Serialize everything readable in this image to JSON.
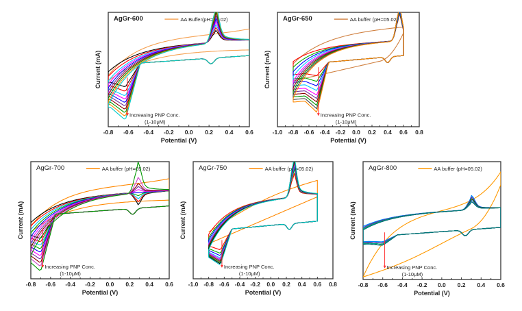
{
  "figure": {
    "description": "Cyclic voltammograms of AgGr electrodes with increasing PNP concentration"
  },
  "chart_data": [
    {
      "type": "line",
      "title": "AgGr-600",
      "legend": [
        "AA Buffer(pH=05.02)"
      ],
      "legend_placement": "top-right",
      "xlabel": "Potential (V)",
      "ylabel": "Current (mA)",
      "xlim": [
        -0.8,
        0.6
      ],
      "xticks": [
        "-0.8",
        "-0.6",
        "-0.4",
        "-0.2",
        "0.0",
        "0.2",
        "0.4",
        "0.6"
      ],
      "ylim": [
        0,
        1
      ],
      "annotation": [
        "Increasing PNP Conc.",
        "(1-10μM)"
      ],
      "concentration_uM": [
        1,
        10
      ],
      "oxidation_peak_V": 0.26,
      "reduction_peak_V": -0.63,
      "reverse_peak_V": 0.22,
      "buffer_has_peak": false,
      "series_count": 10,
      "series_colors": [
        "#000000",
        "#ff0000",
        "#00c8ff",
        "#ff00ff",
        "#0000ff",
        "#7030a0",
        "#8b0000",
        "#009900",
        "#ff8800",
        "#00cccc"
      ],
      "buffer_color": "#f5a050",
      "series": [
        {
          "name": "AA Buffer",
          "color": "#f5a050",
          "anodic": [
            [
              -0.8,
              0.4
            ],
            [
              -0.6,
              0.56
            ],
            [
              -0.4,
              0.7
            ],
            [
              -0.2,
              0.76
            ],
            [
              0.0,
              0.8
            ],
            [
              0.2,
              0.82
            ],
            [
              0.4,
              0.83
            ],
            [
              0.6,
              0.88
            ]
          ],
          "cathodic": [
            [
              0.6,
              0.88
            ],
            [
              0.4,
              0.78
            ],
            [
              0.2,
              0.7
            ],
            [
              0.0,
              0.66
            ],
            [
              -0.2,
              0.62
            ],
            [
              -0.4,
              0.58
            ],
            [
              -0.6,
              0.44
            ],
            [
              -0.8,
              0.4
            ]
          ]
        }
      ],
      "peak_heights_relative": [
        0.78,
        0.8,
        0.82,
        0.84,
        0.86,
        0.88,
        0.9,
        0.92,
        0.94,
        0.96
      ],
      "cathodic_min_relative": [
        0.38,
        0.34,
        0.3,
        0.27,
        0.24,
        0.21,
        0.18,
        0.15,
        0.12,
        0.09
      ]
    },
    {
      "type": "line",
      "title": "AgGr-650",
      "legend": [
        "AA buffer (pH=05.02)"
      ],
      "legend_placement": "top-right",
      "xlabel": "Potential (V)",
      "ylabel": "Current (mA)",
      "xlim": [
        -1.0,
        0.8
      ],
      "xticks": [
        "-1.0",
        "-0.8",
        "-0.6",
        "-0.4",
        "-0.2",
        "0.0",
        "0.2",
        "0.4",
        "0.6",
        "0.8"
      ],
      "ylim": [
        0,
        1
      ],
      "annotation": [
        "Increasing PNP Conc.",
        "(1-10μM)"
      ],
      "concentration_uM": [
        1,
        10
      ],
      "oxidation_peak_V": 0.54,
      "reduction_peak_V": -0.5,
      "reverse_peak_V": 0.4,
      "series_count": 10,
      "series_colors": [
        "#ff0000",
        "#00aa00",
        "#0000ff",
        "#00c8ff",
        "#ff00ff",
        "#7030a0",
        "#8b0000",
        "#009900",
        "#444444",
        "#ff8800"
      ],
      "buffer_color": "#d08040",
      "peak_heights_relative": [
        0.88,
        0.89,
        0.9,
        0.91,
        0.92,
        0.92,
        0.93,
        0.93,
        0.94,
        0.94
      ],
      "cathodic_min_relative": [
        0.47,
        0.42,
        0.38,
        0.34,
        0.3,
        0.27,
        0.24,
        0.21,
        0.18,
        0.15
      ]
    },
    {
      "type": "line",
      "title": "AgGr-700",
      "legend": [
        "AA buffer (pH=05.02)"
      ],
      "legend_placement": "top-right",
      "xlabel": "Potential (V)",
      "ylabel": "Current (mA)",
      "xlim": [
        -0.8,
        0.6
      ],
      "xticks": [
        "-0.8",
        "-0.6",
        "-0.4",
        "-0.2",
        "0.0",
        "0.2",
        "0.4",
        "0.6"
      ],
      "ylim": [
        0,
        1
      ],
      "annotation": [
        "Increasing PNP Conc.",
        "(1-10μM)"
      ],
      "concentration_uM": [
        1,
        10
      ],
      "oxidation_peak_V": 0.28,
      "reduction_peak_V": -0.7,
      "reverse_peak_V": 0.23,
      "series_count": 10,
      "series_colors": [
        "#000000",
        "#ff0000",
        "#00c8ff",
        "#00aa00",
        "#0000ff",
        "#ff00ff",
        "#7030a0",
        "#8b0000",
        "#cc44cc",
        "#009900"
      ],
      "buffer_color": "#ff8800",
      "peak_heights_relative": [
        0.62,
        0.64,
        0.66,
        0.68,
        0.7,
        0.72,
        0.74,
        0.76,
        0.8,
        0.9
      ],
      "cathodic_min_relative": [
        0.38,
        0.35,
        0.32,
        0.29,
        0.26,
        0.23,
        0.2,
        0.17,
        0.14,
        0.1
      ]
    },
    {
      "type": "line",
      "title": "AgGr-750",
      "legend": [
        "AA buffer (pH=05.02)"
      ],
      "legend_placement": "top-right",
      "xlabel": "Potential (V)",
      "ylabel": "Current (mA)",
      "xlim": [
        -1.0,
        0.8
      ],
      "xticks": [
        "-1.0",
        "-0.8",
        "-0.6",
        "-0.4",
        "-0.2",
        "0.0",
        "0.2",
        "0.4",
        "0.6",
        "0.8"
      ],
      "ylim": [
        0,
        1
      ],
      "annotation": [
        "Increasing PNP Conc.",
        "(1-10μM)"
      ],
      "concentration_uM": [
        1,
        10
      ],
      "oxidation_peak_V": 0.29,
      "reduction_peak_V": -0.65,
      "reverse_peak_V": 0.24,
      "series_count": 10,
      "series_colors": [
        "#ff0000",
        "#00aa00",
        "#0000ff",
        "#00c8ff",
        "#ff00ff",
        "#7030a0",
        "#8b0000",
        "#009900",
        "#000000",
        "#00cccc"
      ],
      "buffer_color": "#ff8800",
      "peak_heights_relative": [
        0.82,
        0.85,
        0.87,
        0.88,
        0.89,
        0.9,
        0.91,
        0.92,
        0.93,
        0.94
      ],
      "cathodic_min_relative": [
        0.28,
        0.25,
        0.23,
        0.21,
        0.2,
        0.19,
        0.18,
        0.17,
        0.16,
        0.15
      ]
    },
    {
      "type": "line",
      "title": "AgGr-800",
      "legend": [
        "AA buffer (pH=05.02)"
      ],
      "legend_placement": "top-right",
      "xlabel": "Potential (V)",
      "ylabel": "Current (mA)",
      "xlim": [
        -0.8,
        0.6
      ],
      "xticks": [
        "-0.8",
        "-0.6",
        "-0.4",
        "-0.2",
        "0.0",
        "0.2",
        "0.4",
        "0.6"
      ],
      "ylim": [
        0,
        1
      ],
      "annotation": [
        "Increasing PNP Conc.",
        "(1-10μM)"
      ],
      "concentration_uM": [
        1,
        10
      ],
      "oxidation_peak_V": 0.3,
      "reduction_peak_V": -0.6,
      "reverse_peak_V": 0.24,
      "series_count": 10,
      "series_colors": [
        "#00c8ff",
        "#0088ff",
        "#0000ff",
        "#7030a0",
        "#009900",
        "#006600",
        "#00aa88",
        "#3366cc",
        "#000000",
        "#008080"
      ],
      "buffer_color": "#ff9900",
      "peak_heights_relative": [
        0.64,
        0.64,
        0.63,
        0.63,
        0.62,
        0.62,
        0.61,
        0.61,
        0.6,
        0.6
      ],
      "cathodic_min_relative": [
        0.35,
        0.35,
        0.34,
        0.34,
        0.33,
        0.33,
        0.33,
        0.32,
        0.32,
        0.32
      ]
    }
  ]
}
